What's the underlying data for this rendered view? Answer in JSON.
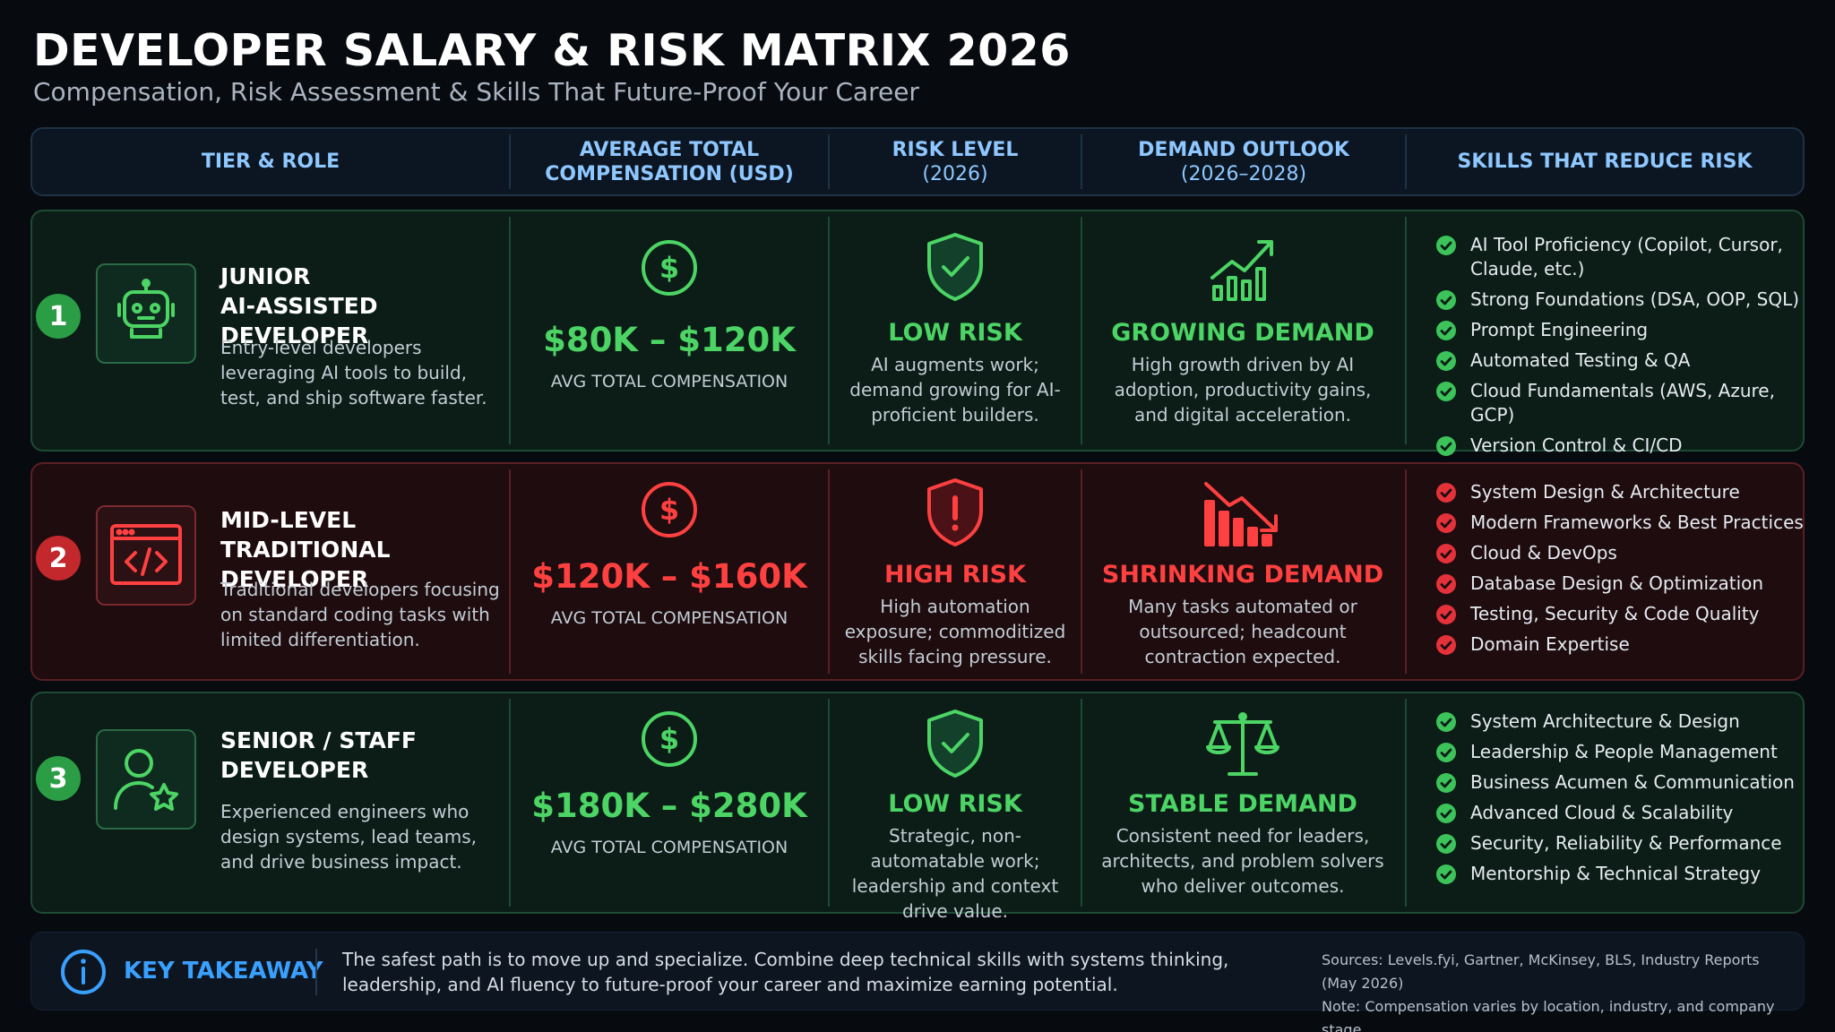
{
  "title": "DEVELOPER SALARY & RISK MATRIX 2026",
  "subtitle": "Compensation, Risk Assessment & Skills That Future-Proof Your Career",
  "columns": {
    "tier": "TIER & ROLE",
    "comp_line1": "AVERAGE TOTAL",
    "comp_line2": "COMPENSATION (USD)",
    "risk_line1": "RISK LEVEL",
    "risk_line2": "(2026)",
    "demand_line1": "DEMAND OUTLOOK",
    "demand_line2": "(2026–2028)",
    "skills": "SKILLS THAT REDUCE RISK"
  },
  "colors": {
    "green": "#4cd465",
    "red": "#ff4040",
    "accent_blue": "#3aa0ff"
  },
  "rows": [
    {
      "num": "1",
      "role_line1": "JUNIOR",
      "role_line2": "AI-ASSISTED DEVELOPER",
      "description": "Entry-level developers leveraging AI tools to build, test, and ship software faster.",
      "icon": "robot-icon",
      "comp": "$80K – $120K",
      "comp_label": "AVG TOTAL COMPENSATION",
      "risk": "LOW RISK",
      "risk_desc": "AI augments work; demand growing for AI-proficient builders.",
      "demand": "GROWING DEMAND",
      "demand_desc": "High growth driven by AI adoption, productivity gains, and digital acceleration.",
      "skills": [
        "AI Tool Proficiency (Copilot, Cursor, Claude, etc.)",
        "Strong Foundations (DSA, OOP, SQL)",
        "Prompt Engineering",
        "Automated Testing & QA",
        "Cloud Fundamentals (AWS, Azure, GCP)",
        "Version Control & CI/CD"
      ]
    },
    {
      "num": "2",
      "role_line1": "MID-LEVEL",
      "role_line2": "TRADITIONAL DEVELOPER",
      "description": "Traditional developers focusing on standard coding tasks with limited differentiation.",
      "icon": "code-window-icon",
      "comp": "$120K – $160K",
      "comp_label": "AVG TOTAL COMPENSATION",
      "risk": "HIGH RISK",
      "risk_desc": "High automation exposure; commoditized skills facing pressure.",
      "demand": "SHRINKING DEMAND",
      "demand_desc": "Many tasks automated or outsourced; headcount contraction expected.",
      "skills": [
        "System Design & Architecture",
        "Modern Frameworks & Best Practices",
        "Cloud & DevOps",
        "Database Design & Optimization",
        "Testing, Security & Code Quality",
        "Domain Expertise"
      ]
    },
    {
      "num": "3",
      "role_line1": "SENIOR / STAFF",
      "role_line2": "DEVELOPER",
      "description": "Experienced engineers who design systems, lead teams, and drive business impact.",
      "icon": "user-star-icon",
      "comp": "$180K – $280K",
      "comp_label": "AVG TOTAL COMPENSATION",
      "risk": "LOW RISK",
      "risk_desc": "Strategic, non-automatable work; leadership and context drive value.",
      "demand": "STABLE DEMAND",
      "demand_desc": "Consistent need for leaders, architects, and problem solvers who deliver outcomes.",
      "skills": [
        "System Architecture & Design",
        "Leadership & People Management",
        "Business Acumen & Communication",
        "Advanced Cloud & Scalability",
        "Security, Reliability & Performance",
        "Mentorship & Technical Strategy"
      ]
    }
  ],
  "takeaway": {
    "title": "KEY TAKEAWAY",
    "text": "The safest path is to move up and specialize. Combine deep technical skills with systems thinking, leadership, and AI fluency to future-proof your career and maximize earning potential.",
    "sources": "Sources: Levels.fyi, Gartner, McKinsey, BLS, Industry Reports (May 2026)",
    "note": "Note: Compensation varies by location, industry, and company stage."
  }
}
